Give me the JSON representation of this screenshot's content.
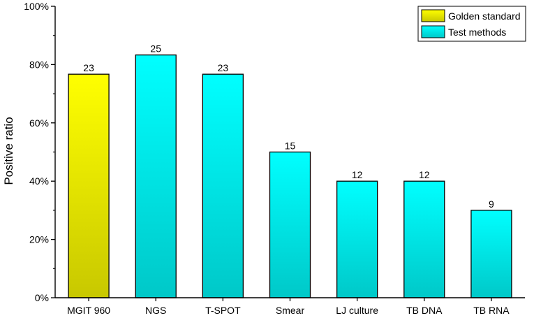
{
  "chart_data": {
    "type": "bar",
    "categories": [
      "MGIT 960",
      "NGS",
      "T-SPOT",
      "Smear",
      "LJ culture",
      "TB DNA",
      "TB RNA"
    ],
    "values": [
      76.7,
      83.3,
      76.7,
      50,
      40,
      40,
      30
    ],
    "data_labels": [
      "23",
      "25",
      "23",
      "15",
      "12",
      "12",
      "9"
    ],
    "bar_groups": [
      "Golden standard",
      "Test methods",
      "Test methods",
      "Test methods",
      "Test methods",
      "Test methods",
      "Test methods"
    ],
    "xlabel": "",
    "ylabel": "Positive ratio",
    "ylim": [
      0,
      100
    ],
    "yticks": [
      0,
      20,
      40,
      60,
      80,
      100
    ],
    "ytick_labels": [
      "0%",
      "20%",
      "40%",
      "60%",
      "80%",
      "100%"
    ],
    "grid": false,
    "legend": {
      "placement": "top-right",
      "entries": [
        {
          "name": "Golden standard",
          "color_top": "#ffff00",
          "color_bottom": "#c8c800"
        },
        {
          "name": "Test methods",
          "color_top": "#00ffff",
          "color_bottom": "#00c8c8"
        }
      ]
    }
  }
}
